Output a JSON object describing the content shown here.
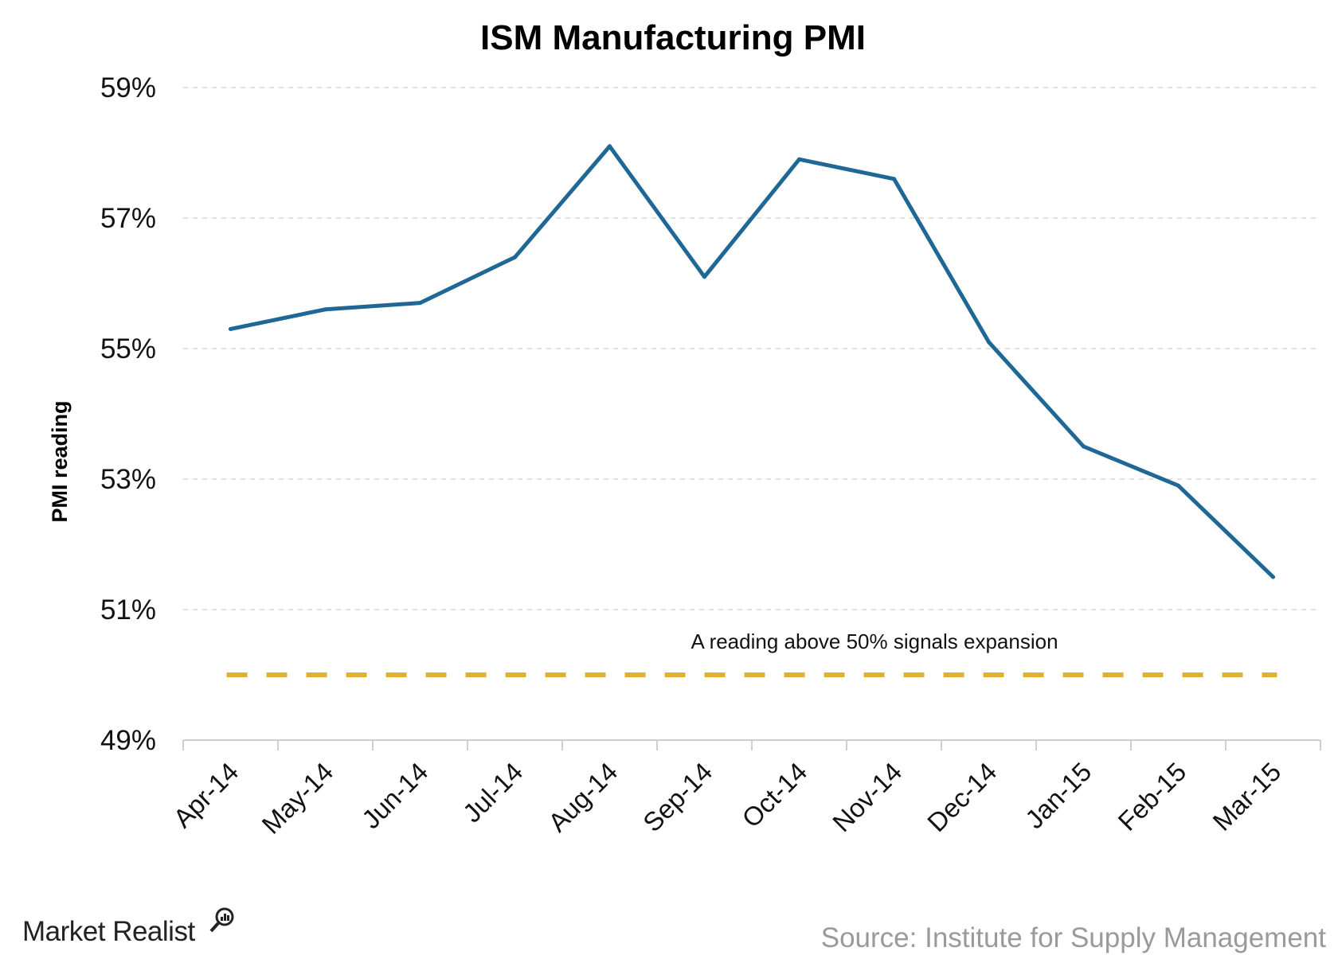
{
  "chart_data": {
    "type": "line",
    "title": "ISM Manufacturing PMI",
    "ylabel": "PMI reading",
    "xlabel": "",
    "categories": [
      "Apr-14",
      "May-14",
      "Jun-14",
      "Jul-14",
      "Aug-14",
      "Sep-14",
      "Oct-14",
      "Nov-14",
      "Dec-14",
      "Jan-15",
      "Feb-15",
      "Mar-15"
    ],
    "series": [
      {
        "values": [
          55.3,
          55.6,
          55.7,
          56.4,
          58.1,
          56.1,
          57.9,
          57.6,
          55.1,
          53.5,
          52.9,
          51.5
        ],
        "color": "#1f6896"
      }
    ],
    "ylim": [
      49,
      59
    ],
    "yticks": [
      49,
      51,
      53,
      55,
      57,
      59
    ],
    "ytick_labels": [
      "49%",
      "51%",
      "53%",
      "55%",
      "57%",
      "59%"
    ],
    "reference_line": {
      "value": 50,
      "color": "#e0b030",
      "style": "dashed"
    },
    "annotation": "A reading above 50% signals expansion",
    "grid": "horizontal dashed",
    "legend": "none"
  },
  "footer": {
    "source": "Source: Institute for Supply Management",
    "logo": "Market Realist"
  }
}
